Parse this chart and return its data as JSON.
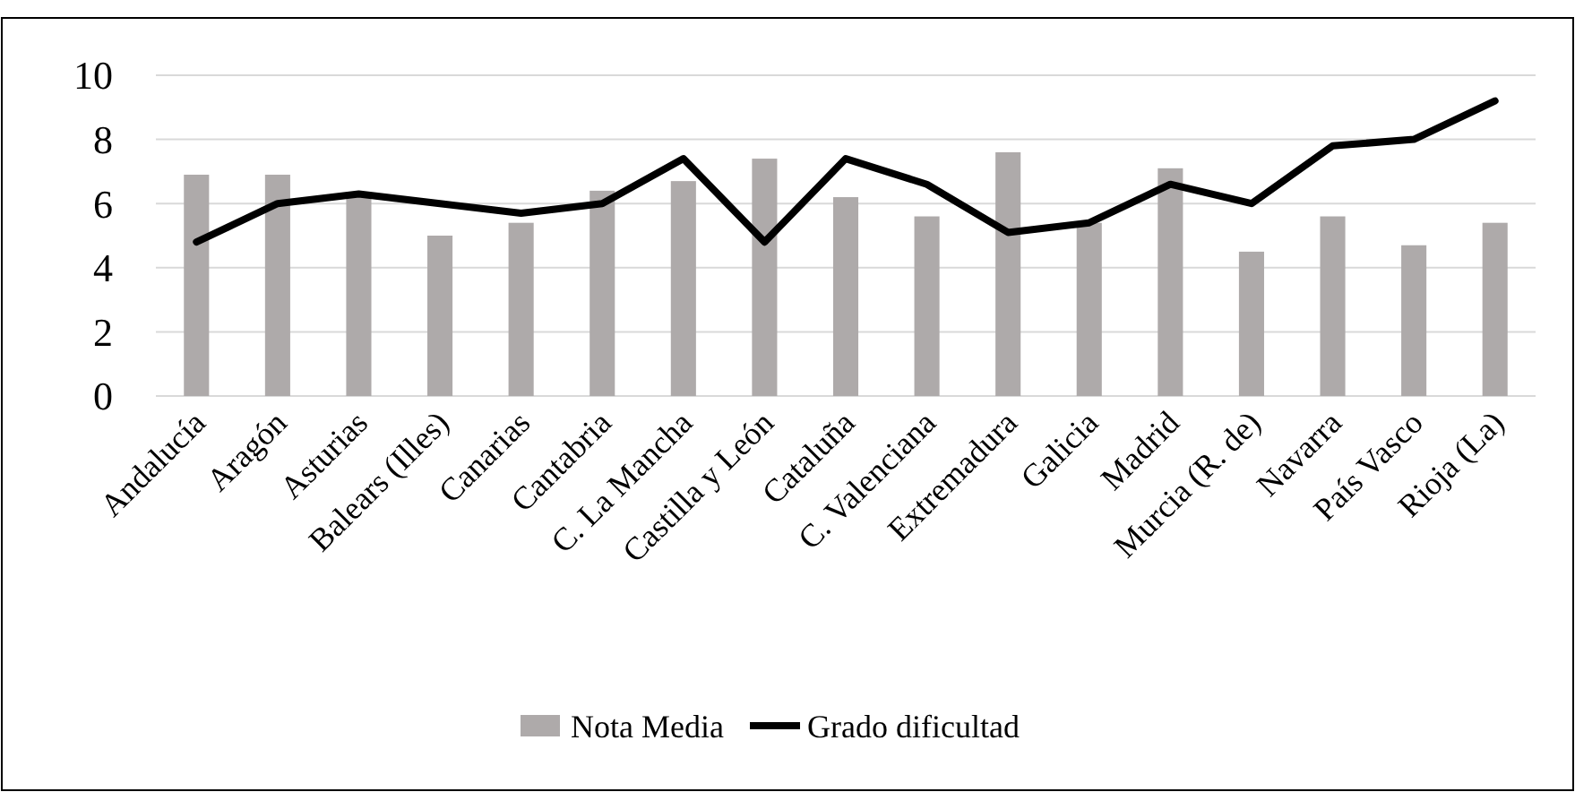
{
  "chart_data": {
    "type": "bar",
    "categories": [
      "Andalucía",
      "Aragón",
      "Asturias",
      "Balears (Illes)",
      "Canarias",
      "Cantabria",
      "C. La Mancha",
      "Castilla y León",
      "Cataluña",
      "C. Valenciana",
      "Extremadura",
      "Galicia",
      "Madrid",
      "Murcia (R. de)",
      "Navarra",
      "País Vasco",
      "Rioja (La)"
    ],
    "series": [
      {
        "name": "Nota Media",
        "color": "#aeaaaa",
        "values": [
          6.9,
          6.9,
          6.2,
          5.0,
          5.4,
          6.4,
          6.7,
          7.4,
          6.2,
          5.6,
          7.6,
          5.4,
          7.1,
          4.5,
          5.6,
          4.7,
          5.4
        ]
      },
      {
        "name": "Grado dificultad",
        "type": "line",
        "color": "#000000",
        "values": [
          4.8,
          6.0,
          6.3,
          6.0,
          5.7,
          6.0,
          7.4,
          4.8,
          7.4,
          6.6,
          5.1,
          5.4,
          6.6,
          6.0,
          7.8,
          8.0,
          9.2
        ]
      }
    ],
    "ylim": [
      0,
      10
    ],
    "yticks": [
      0,
      2,
      4,
      6,
      8,
      10
    ],
    "grid": "y",
    "legend": "bottom"
  }
}
